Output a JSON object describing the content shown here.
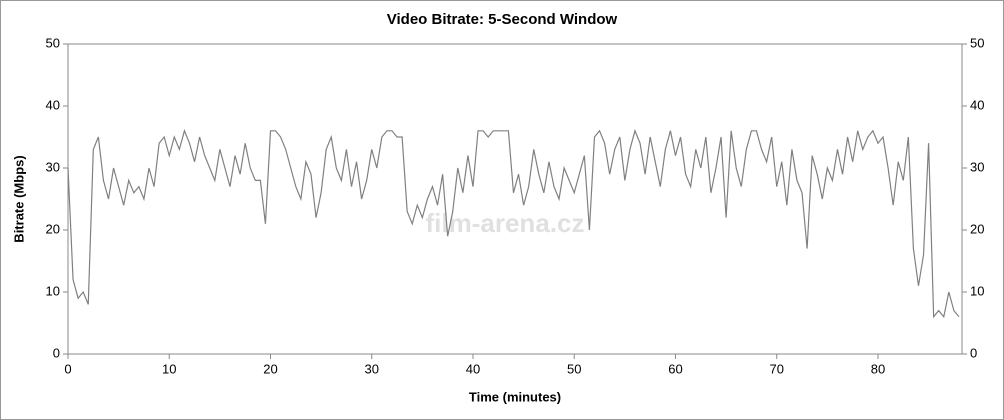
{
  "chart_data": {
    "type": "line",
    "title": "Video Bitrate: 5-Second Window",
    "x_label": "Time (minutes)",
    "y_label": "Bitrate (Mbps)",
    "watermark": "film-arena.cz",
    "xlim": [
      0,
      88.3
    ],
    "xticks": [
      0,
      10,
      20,
      30,
      40,
      50,
      60,
      70,
      80
    ],
    "ylim": [
      0,
      50
    ],
    "yticks": [
      0,
      10,
      20,
      30,
      40,
      50
    ],
    "y2lim": [
      0,
      50
    ],
    "y2ticks": [
      0,
      10,
      20,
      30,
      40,
      50
    ],
    "x": [
      0,
      0.5,
      1,
      1.5,
      2,
      2.5,
      3,
      3.5,
      4,
      4.5,
      5,
      5.5,
      6,
      6.5,
      7,
      7.5,
      8,
      8.5,
      9,
      9.5,
      10,
      10.5,
      11,
      11.5,
      12,
      12.5,
      13,
      13.5,
      14,
      14.5,
      15,
      15.5,
      16,
      16.5,
      17,
      17.5,
      18,
      18.5,
      19,
      19.5,
      20,
      20.5,
      21,
      21.5,
      22,
      22.5,
      23,
      23.5,
      24,
      24.5,
      25,
      25.5,
      26,
      26.5,
      27,
      27.5,
      28,
      28.5,
      29,
      29.5,
      30,
      30.5,
      31,
      31.5,
      32,
      32.5,
      33,
      33.5,
      34,
      34.5,
      35,
      35.5,
      36,
      36.5,
      37,
      37.5,
      38,
      38.5,
      39,
      39.5,
      40,
      40.5,
      41,
      41.5,
      42,
      42.5,
      43,
      43.5,
      44,
      44.5,
      45,
      45.5,
      46,
      46.5,
      47,
      47.5,
      48,
      48.5,
      49,
      49.5,
      50,
      50.5,
      51,
      51.5,
      52,
      52.5,
      53,
      53.5,
      54,
      54.5,
      55,
      55.5,
      56,
      56.5,
      57,
      57.5,
      58,
      58.5,
      59,
      59.5,
      60,
      60.5,
      61,
      61.5,
      62,
      62.5,
      63,
      63.5,
      64,
      64.5,
      65,
      65.5,
      66,
      66.5,
      67,
      67.5,
      68,
      68.5,
      69,
      69.5,
      70,
      70.5,
      71,
      71.5,
      72,
      72.5,
      73,
      73.5,
      74,
      74.5,
      75,
      75.5,
      76,
      76.5,
      77,
      77.5,
      78,
      78.5,
      79,
      79.5,
      80,
      80.5,
      81,
      81.5,
      82,
      82.5,
      83,
      83.5,
      84,
      84.5,
      85,
      85.5,
      86,
      86.5,
      87,
      87.5,
      88
    ],
    "series": [
      {
        "name": "Bitrate",
        "color": "#808080",
        "values": [
          30,
          12,
          9,
          10,
          8,
          33,
          35,
          28,
          25,
          30,
          27,
          24,
          28,
          26,
          27,
          25,
          30,
          27,
          34,
          35,
          32,
          35,
          33,
          36,
          34,
          31,
          35,
          32,
          30,
          28,
          33,
          30,
          27,
          32,
          29,
          34,
          30,
          28,
          28,
          21,
          36,
          36,
          35,
          33,
          30,
          27,
          25,
          31,
          29,
          22,
          26,
          33,
          35,
          30,
          28,
          33,
          27,
          31,
          25,
          28,
          33,
          30,
          35,
          36,
          36,
          35,
          35,
          23,
          21,
          24,
          22,
          25,
          27,
          24,
          29,
          19,
          23,
          30,
          26,
          32,
          27,
          36,
          36,
          35,
          36,
          36,
          36,
          36,
          26,
          29,
          24,
          27,
          33,
          29,
          26,
          31,
          27,
          25,
          30,
          28,
          26,
          29,
          32,
          20,
          35,
          36,
          34,
          29,
          33,
          35,
          28,
          33,
          36,
          34,
          29,
          35,
          31,
          27,
          33,
          36,
          32,
          35,
          29,
          27,
          33,
          30,
          35,
          26,
          30,
          35,
          22,
          36,
          30,
          27,
          33,
          36,
          36,
          33,
          31,
          35,
          27,
          31,
          24,
          33,
          28,
          26,
          17,
          32,
          29,
          25,
          30,
          28,
          33,
          29,
          35,
          31,
          36,
          33,
          35,
          36,
          34,
          35,
          30,
          24,
          31,
          28,
          35,
          17,
          11,
          16,
          34,
          6,
          7,
          6,
          10,
          7,
          6
        ]
      }
    ]
  }
}
